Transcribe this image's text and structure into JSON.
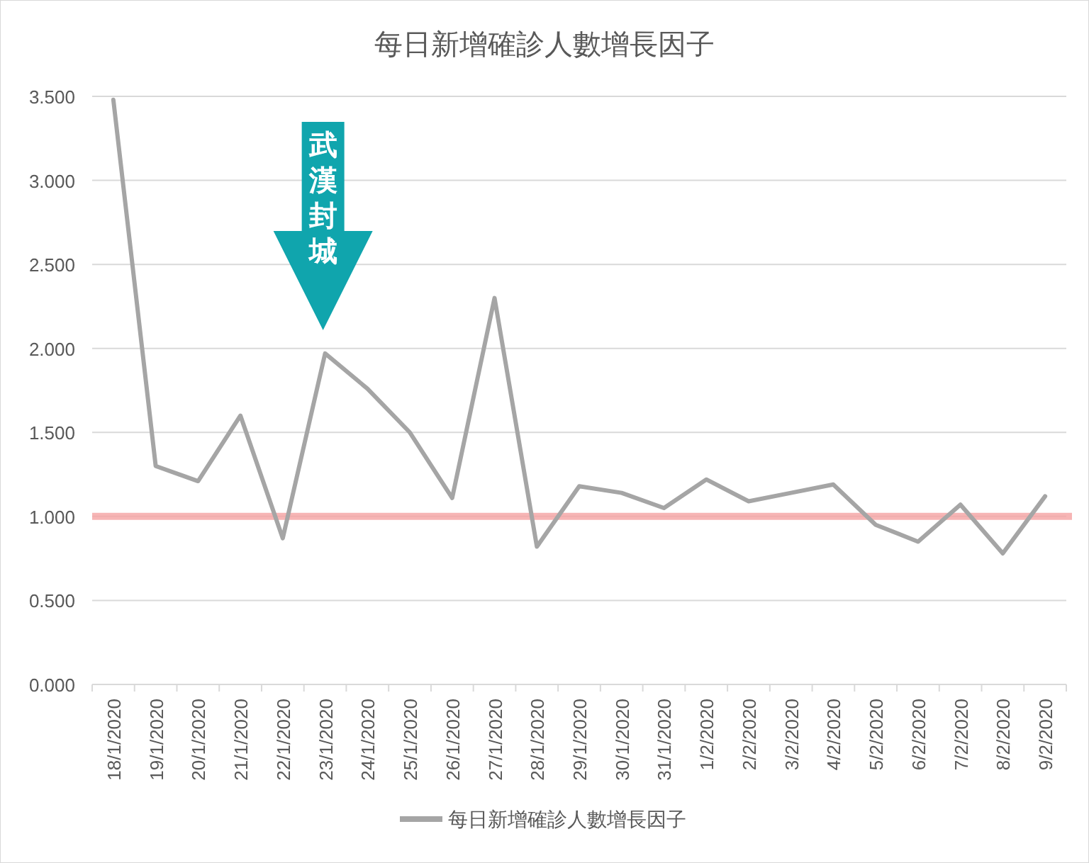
{
  "chart_data": {
    "type": "line",
    "title": "每日新增確診人數增長因子",
    "categories": [
      "18/1/2020",
      "19/1/2020",
      "20/1/2020",
      "21/1/2020",
      "22/1/2020",
      "23/1/2020",
      "24/1/2020",
      "25/1/2020",
      "26/1/2020",
      "27/1/2020",
      "28/1/2020",
      "29/1/2020",
      "30/1/2020",
      "31/1/2020",
      "1/2/2020",
      "2/2/2020",
      "3/2/2020",
      "4/2/2020",
      "5/2/2020",
      "6/2/2020",
      "7/2/2020",
      "8/2/2020",
      "9/2/2020"
    ],
    "series": [
      {
        "name": "每日新增確診人數增長因子",
        "color": "#a5a5a5",
        "values": [
          3.48,
          1.3,
          1.21,
          1.6,
          0.87,
          1.97,
          1.76,
          1.5,
          1.11,
          2.3,
          0.82,
          1.18,
          1.14,
          1.05,
          1.22,
          1.09,
          1.14,
          1.19,
          0.95,
          0.85,
          1.07,
          0.78,
          1.12
        ]
      }
    ],
    "ylim": [
      0,
      3.5
    ],
    "yticks": [
      {
        "value": 0,
        "label": "0.000"
      },
      {
        "value": 0.5,
        "label": "0.500"
      },
      {
        "value": 1,
        "label": "1.000"
      },
      {
        "value": 1.5,
        "label": "1.500"
      },
      {
        "value": 2,
        "label": "2.000"
      },
      {
        "value": 2.5,
        "label": "2.500"
      },
      {
        "value": 3,
        "label": "3.000"
      },
      {
        "value": 3.5,
        "label": "3.500"
      }
    ],
    "ref_lines": [
      {
        "axis": "y",
        "value": 1,
        "color": "#f5a3a3"
      }
    ],
    "annotations": [
      "武漢封城"
    ],
    "grid": "y",
    "legend": "bottom",
    "marker": "none",
    "line_style": "solid"
  }
}
